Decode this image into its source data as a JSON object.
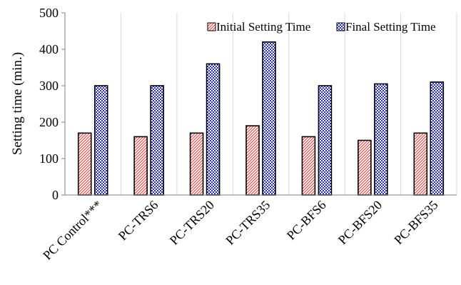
{
  "chart_data": {
    "type": "bar",
    "title": "",
    "xlabel": "",
    "ylabel": "Setting time (min.)",
    "ylim": [
      0,
      500
    ],
    "yticks": [
      0,
      100,
      200,
      300,
      400,
      500
    ],
    "grid": "vertical category separators",
    "legend_position": "top-right",
    "categories": [
      "PC Control***",
      "PC-TRS6",
      "PC-TRS20",
      "PC-TRS35",
      "PC-BFS6",
      "PC-BFS20",
      "PC-BFS35"
    ],
    "series": [
      {
        "name": "Initial Setting Time",
        "color": "#e8403c",
        "values": [
          170,
          160,
          170,
          190,
          160,
          150,
          170
        ]
      },
      {
        "name": "Final Setting Time",
        "color": "#2b2fd0",
        "values": [
          300,
          300,
          360,
          420,
          300,
          305,
          310
        ]
      }
    ]
  }
}
